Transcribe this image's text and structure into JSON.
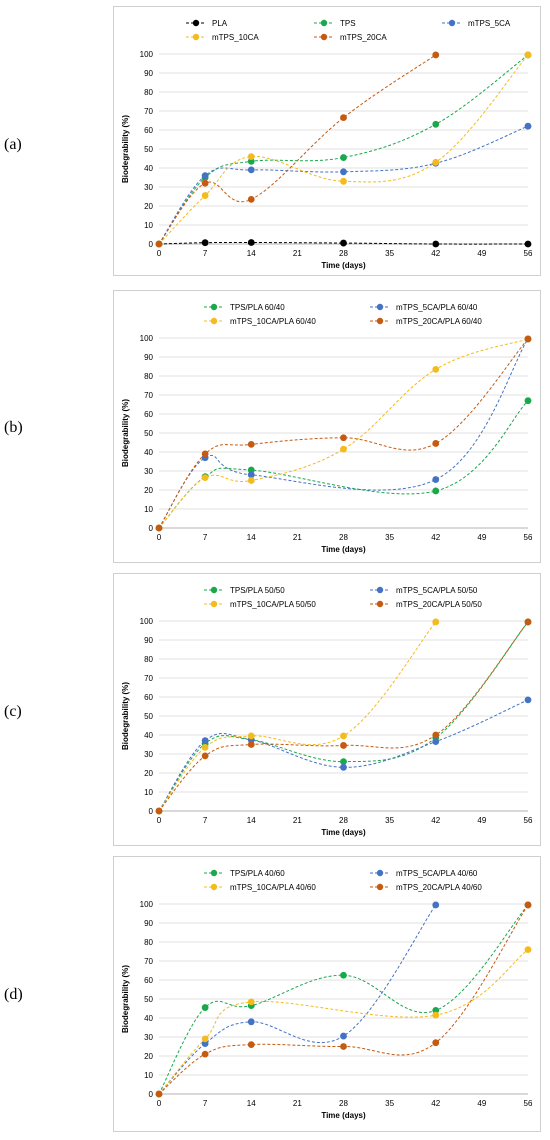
{
  "chart_data": [
    {
      "panel": "(a)",
      "type": "line",
      "xlabel": "Time (days)",
      "ylabel": "Biodegrability (%)",
      "xticks": [
        0,
        7,
        14,
        21,
        28,
        35,
        42,
        49,
        56
      ],
      "ylim": [
        0,
        100
      ],
      "ytick_step": 10,
      "grid": "horizontal",
      "legend": "top",
      "series": [
        {
          "name": "PLA",
          "color": "#000000",
          "x": [
            0,
            7,
            14,
            28,
            42,
            56
          ],
          "y": [
            0,
            0.7,
            0.8,
            0.5,
            0,
            0
          ]
        },
        {
          "name": "TPS",
          "color": "#19a84c",
          "x": [
            0,
            7,
            14,
            28,
            42,
            56
          ],
          "y": [
            0,
            35,
            43.5,
            45.5,
            63,
            99.5
          ]
        },
        {
          "name": "mTPS_5CA",
          "color": "#4472c4",
          "x": [
            0,
            7,
            14,
            28,
            42,
            56
          ],
          "y": [
            0,
            36,
            39,
            38,
            42.5,
            62
          ]
        },
        {
          "name": "mTPS_10CA",
          "color": "#f4bb1e",
          "x": [
            0,
            7,
            14,
            28,
            42,
            56
          ],
          "y": [
            0,
            25.5,
            46,
            33,
            43,
            99.5
          ]
        },
        {
          "name": "mTPS_20CA",
          "color": "#c55a11",
          "x": [
            0,
            7,
            14,
            28,
            42,
            56
          ],
          "y": [
            0,
            32,
            23.5,
            66.5,
            99.5,
            null
          ]
        }
      ]
    },
    {
      "panel": "(b)",
      "type": "line",
      "xlabel": "Time (days)",
      "ylabel": "Biodegrability (%)",
      "xticks": [
        0,
        7,
        14,
        21,
        28,
        35,
        42,
        49,
        56
      ],
      "ylim": [
        0,
        100
      ],
      "ytick_step": 10,
      "grid": "horizontal",
      "legend": "top",
      "series": [
        {
          "name": "TPS/PLA 60/40",
          "color": "#19a84c",
          "x": [
            0,
            7,
            14,
            28,
            42,
            56
          ],
          "y": [
            0,
            27,
            30.5,
            null,
            19.5,
            67
          ]
        },
        {
          "name": "mTPS_5CA/PLA 60/40",
          "color": "#4472c4",
          "x": [
            0,
            7,
            14,
            28,
            42,
            56
          ],
          "y": [
            0,
            37,
            28,
            null,
            25.5,
            99.5
          ]
        },
        {
          "name": "mTPS_10CA/PLA 60/40",
          "color": "#f4bb1e",
          "x": [
            0,
            7,
            14,
            28,
            42,
            56
          ],
          "y": [
            0,
            26.5,
            25,
            41.5,
            83.5,
            99.5
          ]
        },
        {
          "name": "mTPS_20CA/PLA 60/40",
          "color": "#c55a11",
          "x": [
            0,
            7,
            14,
            28,
            42,
            56
          ],
          "y": [
            0,
            39,
            44,
            47.5,
            44.5,
            99.5
          ]
        }
      ]
    },
    {
      "panel": "(c)",
      "type": "line",
      "xlabel": "Time (days)",
      "ylabel": "Biodegrability (%)",
      "xticks": [
        0,
        7,
        14,
        21,
        28,
        35,
        42,
        49,
        56
      ],
      "ylim": [
        0,
        100
      ],
      "ytick_step": 10,
      "grid": "horizontal",
      "legend": "top",
      "series": [
        {
          "name": "TPS/PLA 50/50",
          "color": "#19a84c",
          "x": [
            0,
            7,
            14,
            28,
            42,
            56
          ],
          "y": [
            0,
            35.5,
            37.5,
            26,
            38.5,
            99.5
          ]
        },
        {
          "name": "mTPS_5CA/PLA 50/50",
          "color": "#4472c4",
          "x": [
            0,
            7,
            14,
            28,
            42,
            56
          ],
          "y": [
            0,
            37,
            37.5,
            23,
            36.5,
            58.5
          ]
        },
        {
          "name": "mTPS_10CA/PLA 50/50",
          "color": "#f4bb1e",
          "x": [
            0,
            7,
            14,
            28,
            42,
            56
          ],
          "y": [
            0,
            33.5,
            39.5,
            39.5,
            99.5,
            null
          ]
        },
        {
          "name": "mTPS_20CA/PLA 50/50",
          "color": "#c55a11",
          "x": [
            0,
            7,
            14,
            28,
            42,
            56
          ],
          "y": [
            0,
            29,
            35,
            34.5,
            40,
            99.5
          ]
        }
      ]
    },
    {
      "panel": "(d)",
      "type": "line",
      "xlabel": "Time (days)",
      "ylabel": "Biodegrability (%)",
      "xticks": [
        0,
        7,
        14,
        21,
        28,
        35,
        42,
        49,
        56
      ],
      "ylim": [
        0,
        100
      ],
      "ytick_step": 10,
      "grid": "horizontal",
      "legend": "top",
      "series": [
        {
          "name": "TPS/PLA 40/60",
          "color": "#19a84c",
          "x": [
            0,
            7,
            14,
            28,
            42,
            56
          ],
          "y": [
            0,
            45.5,
            46.5,
            62.5,
            44,
            99.5
          ]
        },
        {
          "name": "mTPS_5CA/PLA 40/60",
          "color": "#4472c4",
          "x": [
            0,
            7,
            14,
            28,
            42,
            56
          ],
          "y": [
            0,
            26.5,
            38,
            30.5,
            99.5,
            null
          ]
        },
        {
          "name": "mTPS_10CA/PLA 40/60",
          "color": "#f4bb1e",
          "x": [
            0,
            7,
            14,
            28,
            42,
            56
          ],
          "y": [
            0,
            29,
            48.5,
            null,
            41.5,
            76
          ]
        },
        {
          "name": "mTPS_20CA/PLA 40/60",
          "color": "#c55a11",
          "x": [
            0,
            7,
            14,
            28,
            42,
            56
          ],
          "y": [
            0,
            21,
            26,
            25,
            27,
            99.5
          ]
        }
      ]
    }
  ]
}
